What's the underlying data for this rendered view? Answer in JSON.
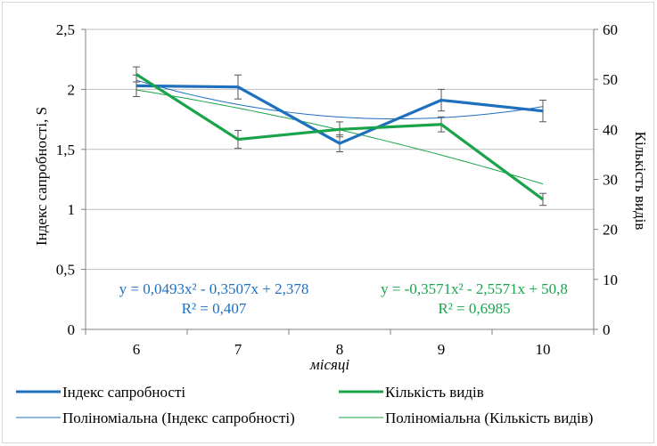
{
  "chart_data": {
    "type": "line",
    "categories": [
      "6",
      "7",
      "8",
      "9",
      "10"
    ],
    "xlabel": "місяці",
    "ylabel_left": "Індекс сапробності, S",
    "ylabel_right": "Кількість видів",
    "ylim_left": [
      0,
      2.5
    ],
    "ylim_right": [
      0,
      60
    ],
    "yticks_left": [
      "0",
      "0,5",
      "1",
      "1,5",
      "2",
      "2,5"
    ],
    "yticks_right": [
      "0",
      "10",
      "20",
      "30",
      "40",
      "50",
      "60"
    ],
    "grid": "horizontal",
    "legend_position": "bottom",
    "series": [
      {
        "name": "Індекс сапробності",
        "axis": "left",
        "color": "#1f6fbf",
        "values": [
          2.03,
          2.02,
          1.55,
          1.91,
          1.82
        ],
        "error": [
          0.09,
          0.1,
          0.07,
          0.09,
          0.09
        ]
      },
      {
        "name": "Кількість видів",
        "axis": "right",
        "color": "#1aa34a",
        "values": [
          51,
          38,
          40,
          41,
          26
        ],
        "error": [
          1.5,
          1.8,
          1.5,
          1.5,
          1.2
        ]
      }
    ],
    "trendlines": [
      {
        "name": "Поліноміальна (Індекс сапробності)",
        "axis": "left",
        "color": "#1f6fbf",
        "coeffs": [
          0.0493,
          -0.3507,
          2.378
        ],
        "equation": "y = 0,0493x² - 0,3507x + 2,378",
        "r2": "R² = 0,407"
      },
      {
        "name": "Поліноміальна (Кількість видів)",
        "axis": "right",
        "color": "#1aa34a",
        "coeffs": [
          -0.3571,
          -2.5571,
          50.8
        ],
        "equation": "y = -0,3571x² - 2,5571x + 50,8",
        "r2": "R² = 0,6985"
      }
    ]
  }
}
